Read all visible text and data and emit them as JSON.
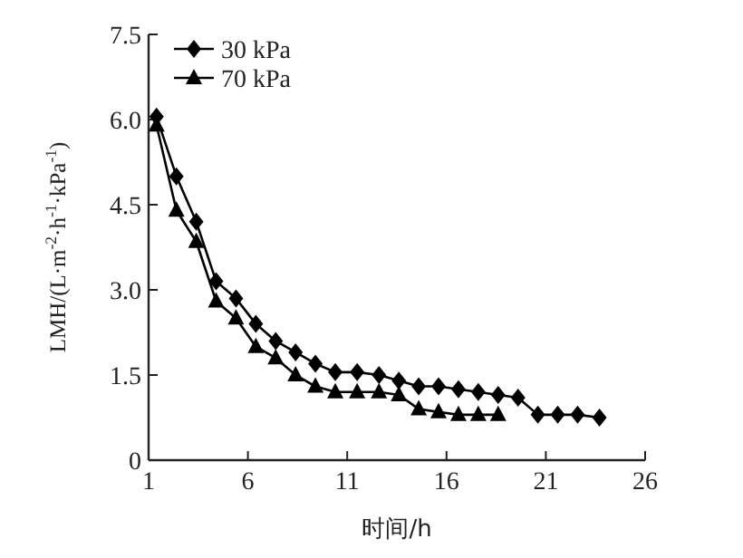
{
  "chart_data": {
    "type": "line",
    "xlabel": "时间/h",
    "ylabel": "LMH/(L·m$^{-2}$·h$^{-1}$·kPa$^{-1}$)",
    "xlim": [
      1,
      26
    ],
    "xticks": [
      1,
      6,
      11,
      16,
      21,
      26
    ],
    "ylim": [
      0,
      7.5
    ],
    "yticks": [
      0,
      1.5,
      {
        "value": 3,
        "label": "3.0"
      },
      4.5,
      {
        "value": 6,
        "label": "6.0"
      },
      7.5
    ],
    "legend": "top left",
    "grid": false,
    "series": [
      {
        "name": "30 kPa",
        "color": "#000000",
        "marker": "diamond",
        "x": [
          1.4,
          2.4,
          3.4,
          4.4,
          5.4,
          6.4,
          7.4,
          8.4,
          9.4,
          10.4,
          11.5,
          12.6,
          13.6,
          14.6,
          15.6,
          16.6,
          17.6,
          18.6,
          19.6,
          20.6,
          21.6,
          22.6,
          23.7
        ],
        "values": [
          6.05,
          5.0,
          4.2,
          3.15,
          2.85,
          2.4,
          2.1,
          1.9,
          1.7,
          1.55,
          1.55,
          1.5,
          1.4,
          1.3,
          1.3,
          1.25,
          1.2,
          1.15,
          1.1,
          0.8,
          0.8,
          0.8,
          0.75
        ]
      },
      {
        "name": "70 kPa",
        "color": "#000000",
        "marker": "triangle",
        "x": [
          1.4,
          2.4,
          3.4,
          4.4,
          5.4,
          6.4,
          7.4,
          8.4,
          9.4,
          10.4,
          11.5,
          12.6,
          13.6,
          14.6,
          15.6,
          16.6,
          17.6,
          18.6
        ],
        "values": [
          5.9,
          4.4,
          3.85,
          2.8,
          2.5,
          2.0,
          1.8,
          1.5,
          1.3,
          1.2,
          1.2,
          1.2,
          1.15,
          0.9,
          0.85,
          0.8,
          0.8,
          0.8
        ]
      }
    ]
  }
}
